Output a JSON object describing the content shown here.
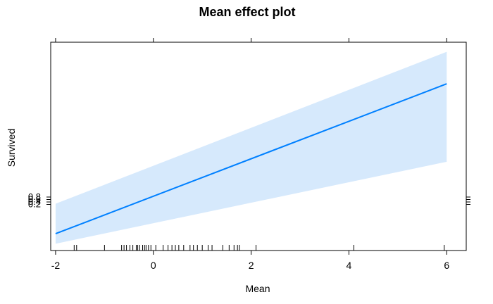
{
  "chart_data": {
    "type": "line",
    "title": "Mean effect plot",
    "xlabel": "Mean",
    "ylabel": "Survived",
    "xlim": [
      -2.1,
      6.4
    ],
    "x_ticks": [
      -2,
      0,
      2,
      4,
      6
    ],
    "x_tick_labels": [
      "-2",
      "0",
      "2",
      "4",
      "6"
    ],
    "y_tick_labels": [
      "0.8",
      "0.6",
      "0.4",
      "0.2"
    ],
    "y_tick_labels_overlap": true,
    "grid": false,
    "legend": "none",
    "line_color": "#0080ff",
    "band_color": "#d6e9fc",
    "series": [
      {
        "x": [
          -2,
          6
        ],
        "y": [
          0.07,
          0.82
        ]
      }
    ],
    "band": {
      "x": [
        -2,
        6
      ],
      "upper": [
        0.22,
        0.98
      ],
      "lower": [
        0.02,
        0.43
      ]
    },
    "rug": [
      -1.62,
      -1.57,
      -1.0,
      -0.65,
      -0.6,
      -0.55,
      -0.48,
      -0.42,
      -0.35,
      -0.32,
      -0.28,
      -0.22,
      -0.18,
      -0.15,
      -0.1,
      -0.05,
      0.05,
      0.2,
      0.3,
      0.38,
      0.45,
      0.52,
      0.62,
      0.75,
      0.82,
      0.9,
      1.0,
      1.12,
      1.2,
      1.42,
      1.55,
      1.65,
      1.72,
      1.76,
      2.1,
      4.1,
      5.95
    ]
  }
}
